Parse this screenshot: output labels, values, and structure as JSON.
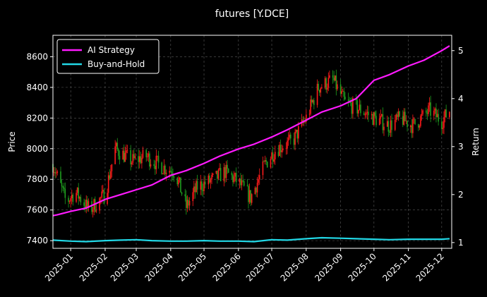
{
  "chart_data": {
    "type": "candlestick+line",
    "title": "futures [Y.DCE]",
    "ylabel_left": "Price",
    "ylabel_right": "Return",
    "grid": true,
    "legend_position": "top-left",
    "ylim_left": [
      7350,
      8740
    ],
    "ylim_right": [
      0.88,
      5.32
    ],
    "yticks_left": [
      7400,
      7600,
      7800,
      8000,
      8200,
      8400,
      8600
    ],
    "yticks_right": [
      1,
      2,
      3,
      4,
      5
    ],
    "xlim": [
      "2024-12-16",
      "2025-12-10"
    ],
    "xticks": [
      "2025-01",
      "2025-02",
      "2025-03",
      "2025-04",
      "2025-05",
      "2025-06",
      "2025-07",
      "2025-08",
      "2025-09",
      "2025-10",
      "2025-11",
      "2025-12"
    ],
    "colors": {
      "up": "#ff1a1a",
      "down": "#1f9e1f",
      "ai": "#ff1aff",
      "bh": "#22d8e6",
      "grid": "#5a5a5a"
    },
    "series": [
      {
        "name": "AI Strategy",
        "axis": "right",
        "x": [
          "2024-12-16",
          "2024-12-20",
          "2025-01-01",
          "2025-01-15",
          "2025-02-01",
          "2025-02-15",
          "2025-03-01",
          "2025-03-15",
          "2025-04-01",
          "2025-04-15",
          "2025-05-01",
          "2025-05-15",
          "2025-06-01",
          "2025-06-15",
          "2025-07-01",
          "2025-07-15",
          "2025-08-01",
          "2025-08-15",
          "2025-09-01",
          "2025-09-15",
          "2025-10-01",
          "2025-10-15",
          "2025-11-01",
          "2025-11-15",
          "2025-12-01",
          "2025-12-08"
        ],
        "values": [
          1.56,
          1.58,
          1.65,
          1.72,
          1.9,
          2.0,
          2.1,
          2.2,
          2.4,
          2.5,
          2.65,
          2.8,
          2.95,
          3.05,
          3.2,
          3.35,
          3.55,
          3.72,
          3.85,
          4.0,
          4.38,
          4.5,
          4.68,
          4.8,
          5.0,
          5.1
        ]
      },
      {
        "name": "Buy-and-Hold",
        "axis": "right",
        "x": [
          "2024-12-16",
          "2025-01-01",
          "2025-01-15",
          "2025-02-01",
          "2025-02-15",
          "2025-03-01",
          "2025-03-15",
          "2025-04-01",
          "2025-04-15",
          "2025-05-01",
          "2025-05-15",
          "2025-06-01",
          "2025-06-15",
          "2025-07-01",
          "2025-07-15",
          "2025-08-01",
          "2025-08-15",
          "2025-09-01",
          "2025-09-15",
          "2025-10-01",
          "2025-10-15",
          "2025-11-01",
          "2025-11-15",
          "2025-12-01",
          "2025-12-08"
        ],
        "values": [
          1.05,
          1.03,
          1.02,
          1.04,
          1.05,
          1.06,
          1.04,
          1.03,
          1.03,
          1.04,
          1.03,
          1.03,
          1.02,
          1.06,
          1.05,
          1.08,
          1.1,
          1.09,
          1.08,
          1.07,
          1.06,
          1.07,
          1.07,
          1.07,
          1.08
        ]
      }
    ],
    "price_path": {
      "x": [
        "2024-12-16",
        "2024-12-28",
        "2025-01-05",
        "2025-01-18",
        "2025-02-01",
        "2025-02-10",
        "2025-02-25",
        "2025-03-10",
        "2025-03-25",
        "2025-04-05",
        "2025-04-15",
        "2025-04-25",
        "2025-05-10",
        "2025-05-20",
        "2025-06-01",
        "2025-06-12",
        "2025-06-25",
        "2025-07-05",
        "2025-07-20",
        "2025-08-01",
        "2025-08-12",
        "2025-08-25",
        "2025-09-05",
        "2025-09-20",
        "2025-10-01",
        "2025-10-15",
        "2025-10-25",
        "2025-11-05",
        "2025-11-20",
        "2025-12-01",
        "2025-12-08"
      ],
      "values": [
        7900,
        7650,
        7720,
        7600,
        7700,
        8000,
        7920,
        7950,
        7880,
        7850,
        7620,
        7750,
        7800,
        7850,
        7780,
        7680,
        7900,
        8000,
        8050,
        8200,
        8400,
        8450,
        8300,
        8250,
        8200,
        8150,
        8200,
        8150,
        8250,
        8180,
        8250
      ]
    }
  }
}
